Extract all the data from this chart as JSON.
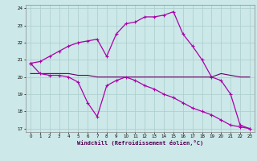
{
  "background_color": "#cce8e8",
  "grid_color": "#aacccc",
  "line_color": "#aa00aa",
  "line_color2": "#660066",
  "xlabel": "Windchill (Refroidissement éolien,°C)",
  "xlim": [
    -0.5,
    23.5
  ],
  "ylim": [
    16.8,
    24.2
  ],
  "yticks": [
    17,
    18,
    19,
    20,
    21,
    22,
    23,
    24
  ],
  "xticks": [
    0,
    1,
    2,
    3,
    4,
    5,
    6,
    7,
    8,
    9,
    10,
    11,
    12,
    13,
    14,
    15,
    16,
    17,
    18,
    19,
    20,
    21,
    22,
    23
  ],
  "line1_x": [
    0,
    1,
    2,
    3,
    4,
    5,
    6,
    7,
    8,
    9,
    10,
    11,
    12,
    13,
    14,
    15,
    16,
    17,
    18,
    19,
    20,
    21,
    22,
    23
  ],
  "line1_y": [
    20.8,
    20.9,
    21.2,
    21.5,
    21.8,
    22.0,
    22.1,
    22.2,
    21.2,
    22.5,
    23.1,
    23.2,
    23.5,
    23.5,
    23.6,
    23.8,
    22.5,
    21.8,
    21.0,
    20.0,
    19.8,
    19.0,
    17.2,
    17.0
  ],
  "line2_x": [
    0,
    1,
    2,
    3,
    4,
    5,
    6,
    7,
    8,
    9,
    10,
    11,
    12,
    13,
    14,
    15,
    16,
    17,
    18,
    19,
    20,
    21,
    22,
    23
  ],
  "line2_y": [
    20.2,
    20.2,
    20.2,
    20.2,
    20.2,
    20.1,
    20.1,
    20.0,
    20.0,
    20.0,
    20.0,
    20.0,
    20.0,
    20.0,
    20.0,
    20.0,
    20.0,
    20.0,
    20.0,
    20.0,
    20.2,
    20.1,
    20.0,
    20.0
  ],
  "line3_x": [
    0,
    1,
    2,
    3,
    4,
    5,
    6,
    7,
    8,
    9,
    10,
    11,
    12,
    13,
    14,
    15,
    16,
    17,
    18,
    19,
    20,
    21,
    22,
    23
  ],
  "line3_y": [
    20.8,
    20.2,
    20.1,
    20.1,
    20.0,
    19.7,
    18.5,
    17.7,
    19.5,
    19.8,
    20.0,
    19.8,
    19.5,
    19.3,
    19.0,
    18.8,
    18.5,
    18.2,
    18.0,
    17.8,
    17.5,
    17.2,
    17.1,
    17.0
  ]
}
